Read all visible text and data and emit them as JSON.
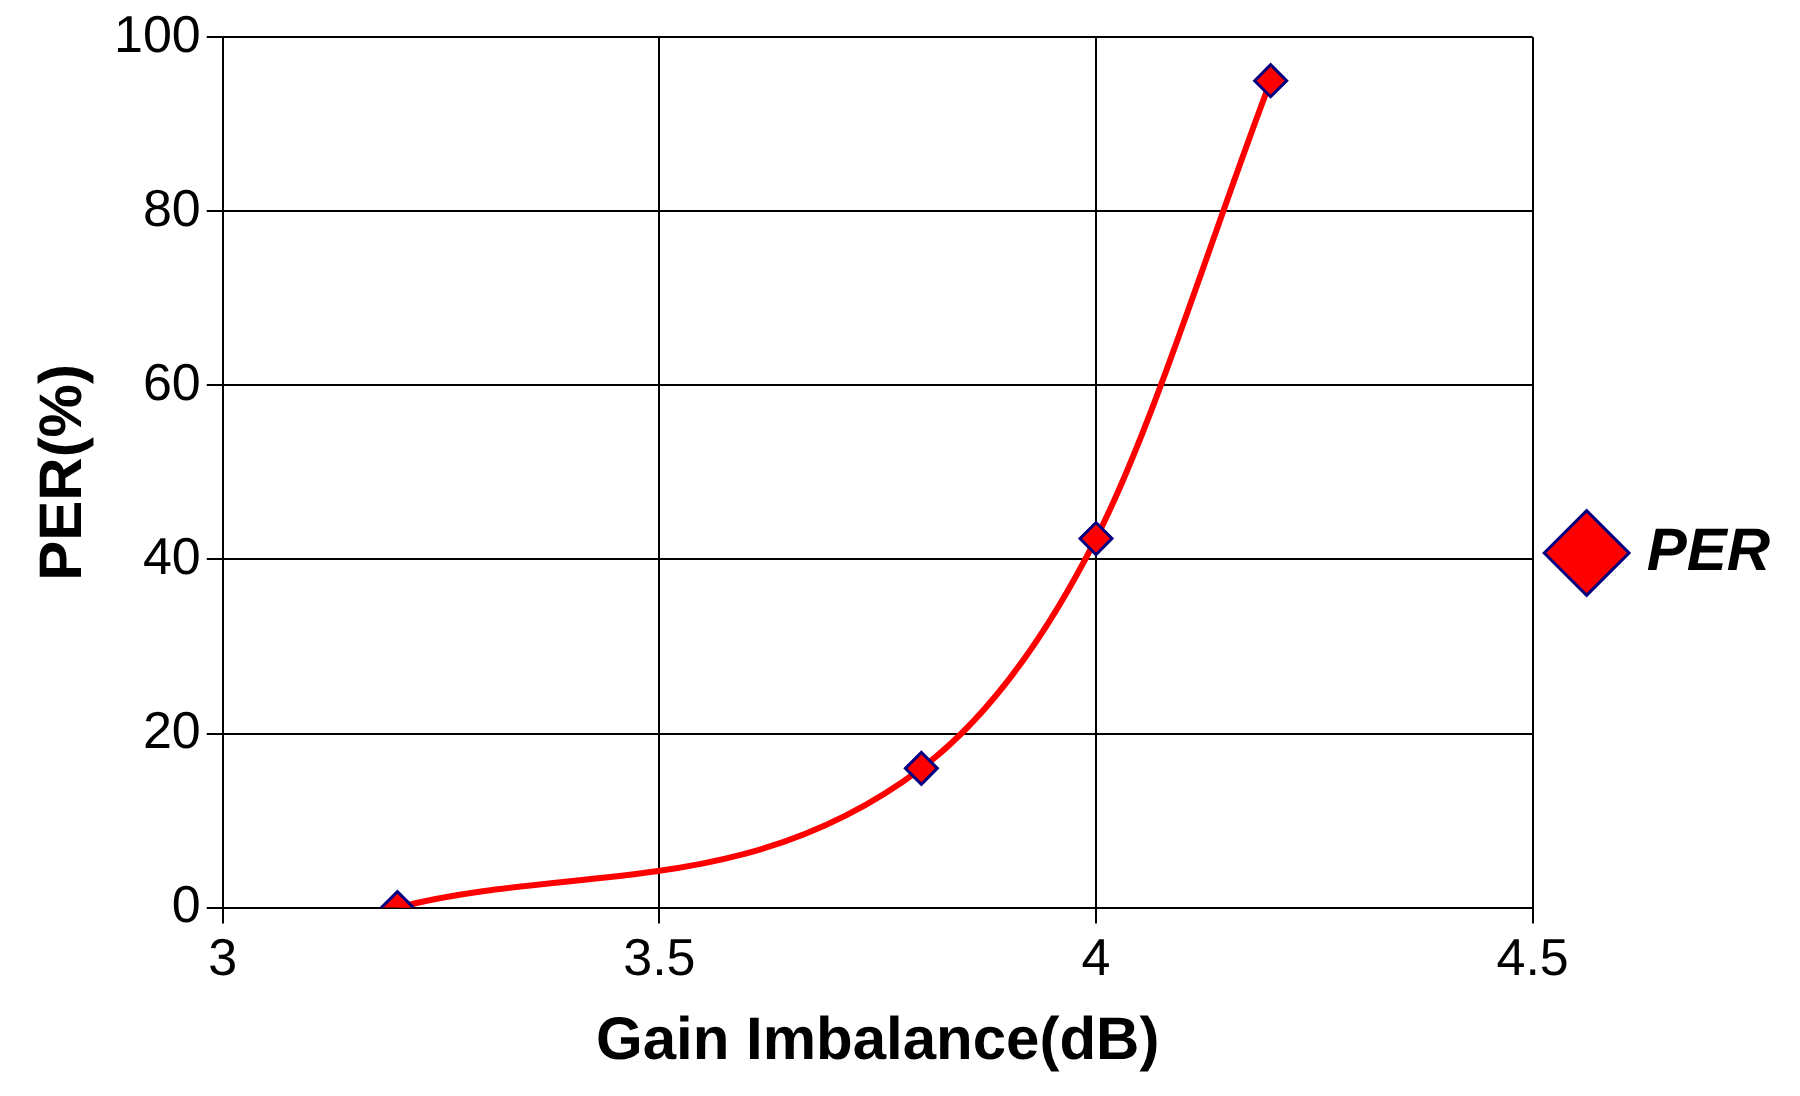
{
  "chart_data": {
    "type": "line",
    "xlabel": "Gain Imbalance(dB)",
    "ylabel": "PER(%)",
    "x": [
      3.2,
      3.8,
      4.0,
      4.2
    ],
    "series": [
      {
        "name": "PER",
        "color": "#ff0000",
        "values": [
          0,
          16,
          42.4,
          95
        ]
      }
    ],
    "xlim": [
      3,
      4.5
    ],
    "xticks": [
      3,
      3.5,
      4,
      4.5
    ],
    "ylim": [
      0,
      100
    ],
    "yticks": [
      0,
      20,
      40,
      60,
      80,
      100
    ],
    "grid": true,
    "legend": "right",
    "marker": "diamond",
    "line_style": "solid"
  }
}
